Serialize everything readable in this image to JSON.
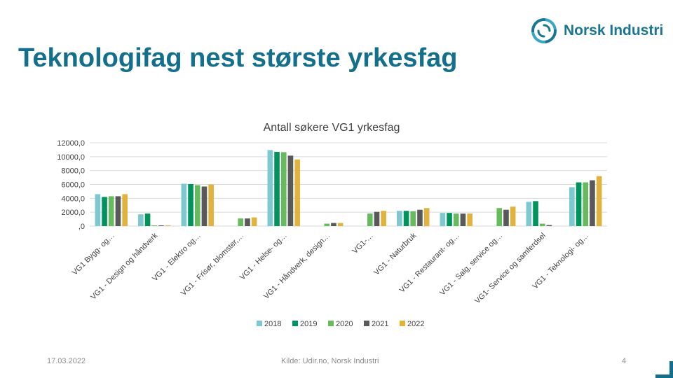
{
  "slide": {
    "title": "Teknologifag nest største yrkesfag",
    "logo_text": "Norsk Industri",
    "footer_date": "17.03.2022",
    "footer_source": "Kilde: Udir.no, Norsk Industri",
    "page_number": "4",
    "colors": {
      "title": "#146f8c",
      "logo": "#1a7591"
    }
  },
  "chart_data": {
    "type": "bar",
    "title": "Antall søkere VG1 yrkesfag",
    "xlabel": "",
    "ylabel": "",
    "ylim": [
      0,
      12000
    ],
    "yticks": [
      "12000,0",
      "10000,0",
      "8000,0",
      "6000,0",
      "4000,0",
      "2000,0",
      ",0"
    ],
    "grid": true,
    "legend_position": "bottom",
    "categories": [
      "VG1 Bygg- og…",
      "VG1 - Design og håndverk",
      "VG1 - Elektro og…",
      "VG1 - Frisør, blomster,…",
      "VG1 - Helse- og…",
      "VG1 - Håndverk, design…",
      "VG1-…",
      "VG1 - Naturbruk",
      "VG1 - Restaurant- og…",
      "VG1 - Salg, service og…",
      "VG1- Service og samferdsel",
      "VG1 - Teknologi- og…"
    ],
    "series": [
      {
        "name": "2018",
        "color": "#7ec8d0",
        "values": [
          4600,
          1700,
          6100,
          0,
          10950,
          0,
          0,
          2200,
          1900,
          0,
          3500,
          5600
        ]
      },
      {
        "name": "2019",
        "color": "#00935d",
        "values": [
          4200,
          1800,
          6050,
          0,
          10700,
          0,
          0,
          2200,
          1900,
          0,
          3600,
          6300
        ]
      },
      {
        "name": "2020",
        "color": "#66bb5c",
        "values": [
          4300,
          100,
          5900,
          1100,
          10650,
          350,
          1800,
          2150,
          1800,
          2600,
          350,
          6300
        ]
      },
      {
        "name": "2021",
        "color": "#595959",
        "values": [
          4300,
          100,
          5700,
          1100,
          10150,
          450,
          2050,
          2350,
          1800,
          2350,
          150,
          6600
        ]
      },
      {
        "name": "2022",
        "color": "#e0b23e",
        "values": [
          4600,
          100,
          6000,
          1250,
          9600,
          450,
          2200,
          2600,
          1800,
          2800,
          0,
          7200
        ]
      }
    ]
  }
}
